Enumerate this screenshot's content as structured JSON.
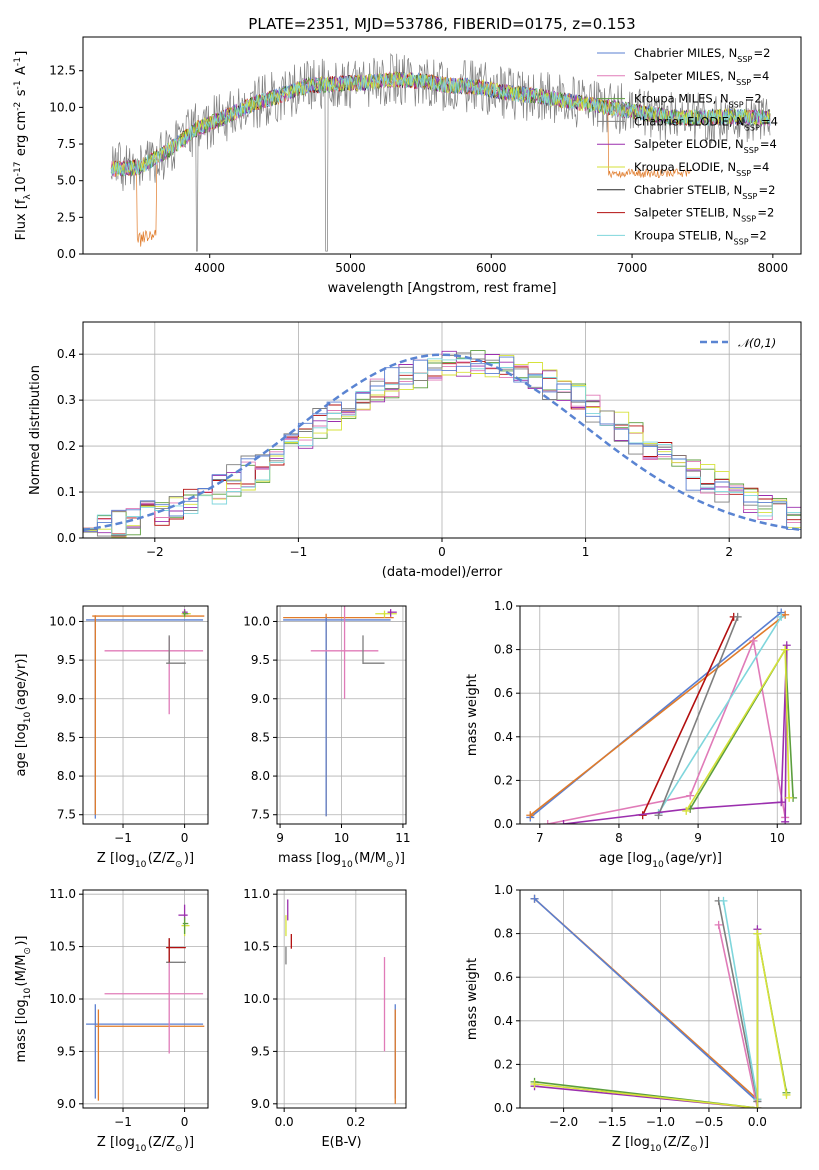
{
  "figure": {
    "title": "PLATE=2351, MJD=53786, FIBERID=0175, z=0.153"
  },
  "series_styles": [
    {
      "name": "Chabrier MILES, N$_{SSP}$=2",
      "color": "#5a7fd1"
    },
    {
      "name": "Salpeter MILES, N$_{SSP}$=4",
      "color": "#e07bb8"
    },
    {
      "name": "Kroupa MILES, N$_{SSP}$=2",
      "color": "#5c9e3e"
    },
    {
      "name": "Chabrier ELODIE, N$_{SSP}$=4",
      "color": "#7f7f7f"
    },
    {
      "name": "Salpeter ELODIE, N$_{SSP}$=4",
      "color": "#9b2fae"
    },
    {
      "name": "Kroupa ELODIE, N$_{SSP}$=4",
      "color": "#d6e23a"
    },
    {
      "name": "Chabrier STELIB, N$_{SSP}$=2",
      "color": "#2b2b2b"
    },
    {
      "name": "Salpeter STELIB, N$_{SSP}$=2",
      "color": "#b30f0f"
    },
    {
      "name": "Kroupa STELIB, N$_{SSP}$=2",
      "color": "#7fd6dc"
    },
    {
      "name": "",
      "color": "#e07b2a"
    }
  ],
  "chart_data": [
    {
      "id": "spectrum",
      "type": "line",
      "xlabel": "wavelength [Angstrom, rest frame]",
      "ylabel": "Flux [f$_\\lambda$10$^{-17}$ erg cm$^{-2}$ s$^{-1}$ A$^{-1}$]",
      "xlim": [
        3100,
        8200
      ],
      "ylim": [
        0,
        14.8
      ],
      "xticks": [
        4000,
        5000,
        6000,
        7000,
        8000
      ],
      "yticks": [
        0.0,
        2.5,
        5.0,
        7.5,
        10.0,
        12.5
      ],
      "grid": false,
      "legend": "upper-right",
      "continuum_x": [
        3300,
        3500,
        3700,
        3900,
        4100,
        4300,
        4500,
        4700,
        4900,
        5100,
        5300,
        5500,
        5700,
        5900,
        6100,
        6300,
        6500,
        6700,
        6900,
        7100,
        7300,
        7500,
        7700,
        7900
      ],
      "continuum_y": [
        5.8,
        5.9,
        7.0,
        8.5,
        9.3,
        10.2,
        10.8,
        11.5,
        11.6,
        11.7,
        11.9,
        11.8,
        11.5,
        11.4,
        11.0,
        10.8,
        10.5,
        10.2,
        9.9,
        9.6,
        9.3,
        9.3,
        9.4,
        9.3
      ]
    },
    {
      "id": "residuals",
      "type": "histogram",
      "xlabel": "(data-model)/error",
      "ylabel": "Normed distribution",
      "xlim": [
        -2.5,
        2.5
      ],
      "ylim": [
        0,
        0.47
      ],
      "xticks": [
        -2,
        -1,
        0,
        1,
        2
      ],
      "yticks": [
        0.0,
        0.1,
        0.2,
        0.3,
        0.4
      ],
      "grid": true,
      "legend": "upper-right",
      "reference_curve": {
        "name": "$\\mathcal{N}(0,1)$",
        "mean": 0,
        "sigma": 1
      },
      "bin_width": 0.1
    },
    {
      "id": "age_vs_Z",
      "type": "errorbar",
      "xlabel": "Z [log$_{10}$(Z/Z$_\\odot$)]",
      "ylabel": "age  [log$_{10}$(age/yr)]",
      "xlim": [
        -1.65,
        0.38
      ],
      "ylim": [
        7.38,
        10.2
      ],
      "xticks": [
        -1,
        0
      ],
      "yticks": [
        7.5,
        8.0,
        8.5,
        9.0,
        9.5,
        10.0
      ],
      "grid": true,
      "points": [
        {
          "s": 0,
          "x": -1.45,
          "y": 10.02,
          "xe": [
            -1.6,
            0.3
          ],
          "ye": [
            7.45,
            10.07
          ]
        },
        {
          "s": 9,
          "x": -1.45,
          "y": 10.07,
          "xe": [
            -1.5,
            0.32
          ],
          "ye": [
            7.5,
            10.08
          ]
        },
        {
          "s": 1,
          "x": -0.25,
          "y": 9.62,
          "xe": [
            -1.3,
            0.3
          ],
          "ye": [
            8.8,
            9.8
          ]
        },
        {
          "s": 3,
          "x": -0.25,
          "y": 9.46,
          "xe": [
            -0.3,
            0.02
          ],
          "ye": [
            9.45,
            9.82
          ]
        },
        {
          "s": 5,
          "x": 0.0,
          "y": 10.1,
          "xe": [
            -0.05,
            0.1
          ],
          "ye": [
            10.05,
            10.15
          ]
        },
        {
          "s": 4,
          "x": 0.0,
          "y": 10.12,
          "xe": [
            -0.04,
            0.05
          ],
          "ye": [
            10.08,
            10.16
          ]
        },
        {
          "s": 2,
          "x": 0.0,
          "y": 10.1,
          "xe": [
            -0.03,
            0.06
          ],
          "ye": [
            10.06,
            10.14
          ]
        }
      ]
    },
    {
      "id": "age_vs_mass",
      "type": "errorbar",
      "xlabel": "mass [log$_{10}$(M/M$_\\odot$)]",
      "ylabel": "",
      "xlim": [
        8.95,
        11.05
      ],
      "ylim": [
        7.38,
        10.2
      ],
      "xticks": [
        9,
        10,
        11
      ],
      "yticks": [
        7.5,
        8.0,
        8.5,
        9.0,
        9.5,
        10.0
      ],
      "grid": true,
      "points": [
        {
          "s": 9,
          "x": 9.75,
          "y": 10.05,
          "xe": [
            9.05,
            10.85
          ],
          "ye": [
            7.48,
            10.1
          ]
        },
        {
          "s": 0,
          "x": 9.75,
          "y": 10.02,
          "xe": [
            9.05,
            10.8
          ],
          "ye": [
            7.48,
            10.05
          ]
        },
        {
          "s": 1,
          "x": 10.05,
          "y": 9.62,
          "xe": [
            9.5,
            10.6
          ],
          "ye": [
            9.0,
            10.25
          ]
        },
        {
          "s": 3,
          "x": 10.35,
          "y": 9.46,
          "xe": [
            10.35,
            10.7
          ],
          "ye": [
            9.45,
            9.82
          ]
        },
        {
          "s": 5,
          "x": 10.7,
          "y": 10.1,
          "xe": [
            10.55,
            10.9
          ],
          "ye": [
            10.05,
            10.14
          ]
        },
        {
          "s": 4,
          "x": 10.8,
          "y": 10.12,
          "xe": [
            10.75,
            10.9
          ],
          "ye": [
            10.06,
            10.16
          ]
        }
      ]
    },
    {
      "id": "massweight_vs_age",
      "type": "line",
      "xlabel": "age  [log$_{10}$(age/yr)]",
      "ylabel": "mass weight",
      "xlim": [
        6.75,
        10.3
      ],
      "ylim": [
        0,
        1.0
      ],
      "xticks": [
        7,
        8,
        9,
        10
      ],
      "yticks": [
        0.0,
        0.2,
        0.4,
        0.6,
        0.8,
        1.0
      ],
      "grid": true,
      "series": [
        {
          "s": 0,
          "x": [
            6.88,
            10.05
          ],
          "y": [
            0.03,
            0.97
          ]
        },
        {
          "s": 9,
          "x": [
            6.88,
            10.1
          ],
          "y": [
            0.04,
            0.96
          ]
        },
        {
          "s": 1,
          "x": [
            7.1,
            8.9,
            9.7,
            10.1
          ],
          "y": [
            0.0,
            0.13,
            0.84,
            0.03
          ]
        },
        {
          "s": 7,
          "x": [
            8.3,
            9.45
          ],
          "y": [
            0.04,
            0.95
          ]
        },
        {
          "s": 8,
          "x": [
            8.5,
            10.05
          ],
          "y": [
            0.05,
            0.95
          ]
        },
        {
          "s": 3,
          "x": [
            8.5,
            9.5
          ],
          "y": [
            0.04,
            0.95
          ]
        },
        {
          "s": 4,
          "x": [
            7.3,
            8.9,
            10.05,
            10.12,
            10.1
          ],
          "y": [
            0.0,
            0.07,
            0.1,
            0.82,
            0.01
          ]
        },
        {
          "s": 2,
          "x": [
            8.9,
            10.1,
            10.2
          ],
          "y": [
            0.07,
            0.8,
            0.12
          ]
        },
        {
          "s": 5,
          "x": [
            8.85,
            10.1,
            10.15
          ],
          "y": [
            0.06,
            0.8,
            0.12
          ]
        }
      ]
    },
    {
      "id": "mass_vs_Z",
      "type": "errorbar",
      "xlabel": "Z [log$_{10}$(Z/Z$_\\odot$)]",
      "ylabel": "mass [log$_{10}$(M/M$_\\odot$)]",
      "xlim": [
        -1.65,
        0.38
      ],
      "ylim": [
        8.96,
        11.04
      ],
      "xticks": [
        -1,
        0
      ],
      "yticks": [
        9.0,
        9.5,
        10.0,
        10.5,
        11.0
      ],
      "grid": true,
      "points": [
        {
          "s": 0,
          "x": -1.45,
          "y": 9.76,
          "xe": [
            -1.6,
            0.3
          ],
          "ye": [
            9.05,
            9.95
          ]
        },
        {
          "s": 9,
          "x": -1.4,
          "y": 9.74,
          "xe": [
            -1.45,
            0.32
          ],
          "ye": [
            9.03,
            9.9
          ]
        },
        {
          "s": 1,
          "x": -0.25,
          "y": 10.05,
          "xe": [
            -1.3,
            0.3
          ],
          "ye": [
            9.48,
            10.35
          ]
        },
        {
          "s": 3,
          "x": -0.25,
          "y": 10.35,
          "xe": [
            -0.3,
            0.02
          ],
          "ye": [
            10.35,
            10.58
          ]
        },
        {
          "s": 7,
          "x": -0.25,
          "y": 10.49,
          "xe": [
            -0.3,
            0.02
          ],
          "ye": [
            10.35,
            10.58
          ]
        },
        {
          "s": 4,
          "x": 0.0,
          "y": 10.8,
          "xe": [
            -0.1,
            0.05
          ],
          "ye": [
            10.75,
            10.9
          ]
        },
        {
          "s": 5,
          "x": 0.0,
          "y": 10.7,
          "xe": [
            -0.05,
            0.08
          ],
          "ye": [
            10.6,
            10.75
          ]
        },
        {
          "s": 2,
          "x": 0.0,
          "y": 10.72,
          "xe": [
            -0.03,
            0.06
          ],
          "ye": [
            10.62,
            10.78
          ]
        }
      ]
    },
    {
      "id": "mass_vs_EBV",
      "type": "errorbar",
      "xlabel": "E(B-V)",
      "ylabel": "",
      "xlim": [
        -0.02,
        0.34
      ],
      "ylim": [
        8.96,
        11.04
      ],
      "xticks": [
        0.0,
        0.2
      ],
      "yticks": [
        9.0,
        9.5,
        10.0,
        10.5,
        11.0
      ],
      "grid": true,
      "points": [
        {
          "s": 0,
          "x": 0.31,
          "y": 9.76,
          "xe": [
            0.31,
            0.31
          ],
          "ye": [
            9.05,
            9.95
          ]
        },
        {
          "s": 9,
          "x": 0.31,
          "y": 9.7,
          "xe": [
            0.31,
            0.31
          ],
          "ye": [
            9.0,
            9.9
          ]
        },
        {
          "s": 1,
          "x": 0.28,
          "y": 10.0,
          "xe": [
            0.28,
            0.28
          ],
          "ye": [
            9.5,
            10.4
          ]
        },
        {
          "s": 7,
          "x": 0.02,
          "y": 10.55,
          "xe": [
            0.02,
            0.02
          ],
          "ye": [
            10.48,
            10.62
          ]
        },
        {
          "s": 4,
          "x": 0.01,
          "y": 10.85,
          "xe": [
            0.01,
            0.01
          ],
          "ye": [
            10.75,
            10.95
          ]
        },
        {
          "s": 5,
          "x": 0.005,
          "y": 10.7,
          "xe": [
            0.005,
            0.005
          ],
          "ye": [
            10.6,
            10.8
          ]
        },
        {
          "s": 3,
          "x": 0.005,
          "y": 10.4,
          "xe": [
            0.005,
            0.005
          ],
          "ye": [
            10.33,
            10.5
          ]
        }
      ]
    },
    {
      "id": "massweight_vs_Z",
      "type": "line",
      "xlabel": "Z [log$_{10}$(Z/Z$_\\odot$)]",
      "ylabel": "mass weight",
      "xlim": [
        -2.45,
        0.45
      ],
      "ylim": [
        0,
        1.0
      ],
      "xticks": [
        -2.0,
        -1.5,
        -1.0,
        -0.5,
        0.0
      ],
      "yticks": [
        0.0,
        0.2,
        0.4,
        0.6,
        0.8,
        1.0
      ],
      "grid": true,
      "series": [
        {
          "s": 9,
          "x": [
            -2.3,
            0.0
          ],
          "y": [
            0.96,
            0.04
          ]
        },
        {
          "s": 0,
          "x": [
            -2.3,
            0.0
          ],
          "y": [
            0.96,
            0.03
          ]
        },
        {
          "s": 1,
          "x": [
            -0.4,
            0.0
          ],
          "y": [
            0.84,
            0.0
          ]
        },
        {
          "s": 3,
          "x": [
            -0.4,
            0.0
          ],
          "y": [
            0.95,
            0.03
          ]
        },
        {
          "s": 8,
          "x": [
            -0.35,
            0.0
          ],
          "y": [
            0.95,
            0.04
          ]
        },
        {
          "s": 4,
          "x": [
            -2.3,
            0.0,
            0.0
          ],
          "y": [
            0.1,
            0.0,
            0.82
          ]
        },
        {
          "s": 2,
          "x": [
            -2.3,
            0.0,
            0.0,
            0.3
          ],
          "y": [
            0.12,
            0.0,
            0.8,
            0.07
          ]
        },
        {
          "s": 5,
          "x": [
            -2.3,
            0.0,
            0.0,
            0.3
          ],
          "y": [
            0.11,
            0.0,
            0.8,
            0.06
          ]
        }
      ]
    }
  ]
}
